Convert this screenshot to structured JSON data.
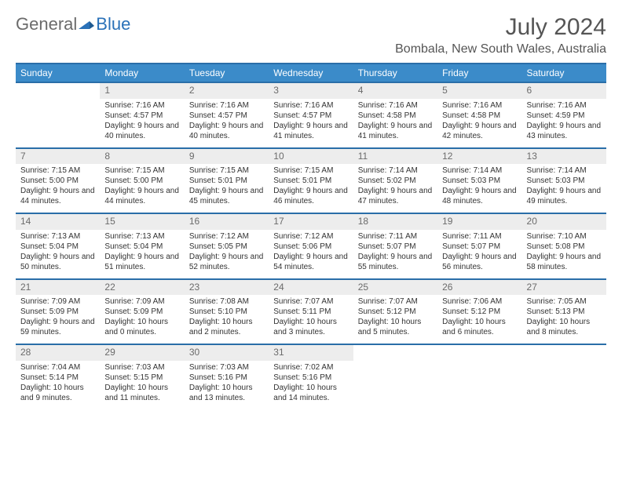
{
  "logo": {
    "text1": "General",
    "text2": "Blue"
  },
  "header": {
    "month": "July 2024",
    "location": "Bombala, New South Wales, Australia"
  },
  "colors": {
    "header_bg": "#3b8bc9",
    "border": "#2a6ea8",
    "daynum_bg": "#ededed",
    "text": "#333333"
  },
  "weekdays": [
    "Sunday",
    "Monday",
    "Tuesday",
    "Wednesday",
    "Thursday",
    "Friday",
    "Saturday"
  ],
  "startOffset": 1,
  "days": [
    {
      "n": 1,
      "sr": "7:16 AM",
      "ss": "4:57 PM",
      "dl": "9 hours and 40 minutes."
    },
    {
      "n": 2,
      "sr": "7:16 AM",
      "ss": "4:57 PM",
      "dl": "9 hours and 40 minutes."
    },
    {
      "n": 3,
      "sr": "7:16 AM",
      "ss": "4:57 PM",
      "dl": "9 hours and 41 minutes."
    },
    {
      "n": 4,
      "sr": "7:16 AM",
      "ss": "4:58 PM",
      "dl": "9 hours and 41 minutes."
    },
    {
      "n": 5,
      "sr": "7:16 AM",
      "ss": "4:58 PM",
      "dl": "9 hours and 42 minutes."
    },
    {
      "n": 6,
      "sr": "7:16 AM",
      "ss": "4:59 PM",
      "dl": "9 hours and 43 minutes."
    },
    {
      "n": 7,
      "sr": "7:15 AM",
      "ss": "5:00 PM",
      "dl": "9 hours and 44 minutes."
    },
    {
      "n": 8,
      "sr": "7:15 AM",
      "ss": "5:00 PM",
      "dl": "9 hours and 44 minutes."
    },
    {
      "n": 9,
      "sr": "7:15 AM",
      "ss": "5:01 PM",
      "dl": "9 hours and 45 minutes."
    },
    {
      "n": 10,
      "sr": "7:15 AM",
      "ss": "5:01 PM",
      "dl": "9 hours and 46 minutes."
    },
    {
      "n": 11,
      "sr": "7:14 AM",
      "ss": "5:02 PM",
      "dl": "9 hours and 47 minutes."
    },
    {
      "n": 12,
      "sr": "7:14 AM",
      "ss": "5:03 PM",
      "dl": "9 hours and 48 minutes."
    },
    {
      "n": 13,
      "sr": "7:14 AM",
      "ss": "5:03 PM",
      "dl": "9 hours and 49 minutes."
    },
    {
      "n": 14,
      "sr": "7:13 AM",
      "ss": "5:04 PM",
      "dl": "9 hours and 50 minutes."
    },
    {
      "n": 15,
      "sr": "7:13 AM",
      "ss": "5:04 PM",
      "dl": "9 hours and 51 minutes."
    },
    {
      "n": 16,
      "sr": "7:12 AM",
      "ss": "5:05 PM",
      "dl": "9 hours and 52 minutes."
    },
    {
      "n": 17,
      "sr": "7:12 AM",
      "ss": "5:06 PM",
      "dl": "9 hours and 54 minutes."
    },
    {
      "n": 18,
      "sr": "7:11 AM",
      "ss": "5:07 PM",
      "dl": "9 hours and 55 minutes."
    },
    {
      "n": 19,
      "sr": "7:11 AM",
      "ss": "5:07 PM",
      "dl": "9 hours and 56 minutes."
    },
    {
      "n": 20,
      "sr": "7:10 AM",
      "ss": "5:08 PM",
      "dl": "9 hours and 58 minutes."
    },
    {
      "n": 21,
      "sr": "7:09 AM",
      "ss": "5:09 PM",
      "dl": "9 hours and 59 minutes."
    },
    {
      "n": 22,
      "sr": "7:09 AM",
      "ss": "5:09 PM",
      "dl": "10 hours and 0 minutes."
    },
    {
      "n": 23,
      "sr": "7:08 AM",
      "ss": "5:10 PM",
      "dl": "10 hours and 2 minutes."
    },
    {
      "n": 24,
      "sr": "7:07 AM",
      "ss": "5:11 PM",
      "dl": "10 hours and 3 minutes."
    },
    {
      "n": 25,
      "sr": "7:07 AM",
      "ss": "5:12 PM",
      "dl": "10 hours and 5 minutes."
    },
    {
      "n": 26,
      "sr": "7:06 AM",
      "ss": "5:12 PM",
      "dl": "10 hours and 6 minutes."
    },
    {
      "n": 27,
      "sr": "7:05 AM",
      "ss": "5:13 PM",
      "dl": "10 hours and 8 minutes."
    },
    {
      "n": 28,
      "sr": "7:04 AM",
      "ss": "5:14 PM",
      "dl": "10 hours and 9 minutes."
    },
    {
      "n": 29,
      "sr": "7:03 AM",
      "ss": "5:15 PM",
      "dl": "10 hours and 11 minutes."
    },
    {
      "n": 30,
      "sr": "7:03 AM",
      "ss": "5:16 PM",
      "dl": "10 hours and 13 minutes."
    },
    {
      "n": 31,
      "sr": "7:02 AM",
      "ss": "5:16 PM",
      "dl": "10 hours and 14 minutes."
    }
  ],
  "labels": {
    "sunrise": "Sunrise:",
    "sunset": "Sunset:",
    "daylight": "Daylight:"
  }
}
